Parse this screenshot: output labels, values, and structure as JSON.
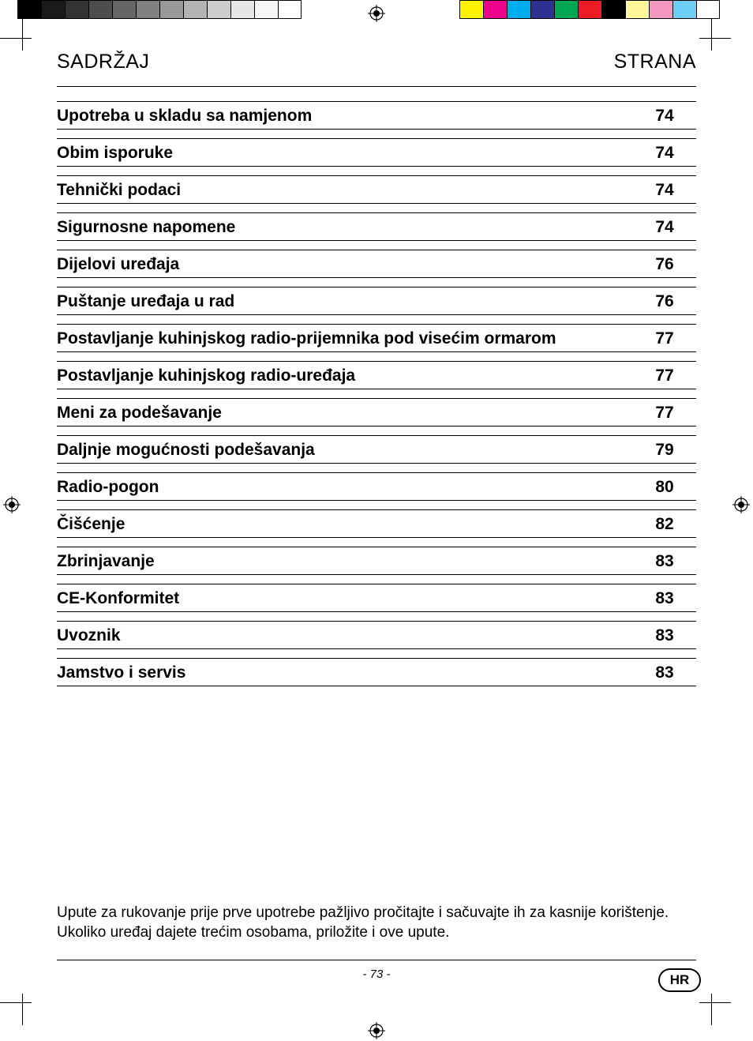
{
  "header": {
    "left": "SADRŽAJ",
    "right": "STRANA"
  },
  "toc": [
    {
      "title": "Upotreba u skladu sa namjenom",
      "page": "74"
    },
    {
      "title": "Obim isporuke",
      "page": "74"
    },
    {
      "title": "Tehnički podaci",
      "page": "74"
    },
    {
      "title": "Sigurnosne napomene",
      "page": "74"
    },
    {
      "title": "Dijelovi uređaja",
      "page": "76"
    },
    {
      "title": "Puštanje uređaja u rad",
      "page": "76"
    },
    {
      "title": "Postavljanje kuhinjskog radio-prijemnika pod visećim ormarom",
      "page": "77"
    },
    {
      "title": "Postavljanje kuhinjskog radio-uređaja",
      "page": "77"
    },
    {
      "title": "Meni za podešavanje",
      "page": "77"
    },
    {
      "title": "Daljnje mogućnosti podešavanja",
      "page": "79"
    },
    {
      "title": "Radio-pogon",
      "page": "80"
    },
    {
      "title": "Čišćenje",
      "page": "82"
    },
    {
      "title": "Zbrinjavanje",
      "page": "83"
    },
    {
      "title": "CE-Konformitet",
      "page": "83"
    },
    {
      "title": "Uvoznik",
      "page": "83"
    },
    {
      "title": "Jamstvo i servis",
      "page": "83"
    }
  ],
  "note": "Upute za rukovanje prije prve upotrebe pažljivo pročitajte i sačuvajte ih za kasnije korištenje. Ukoliko uređaj dajete trećim osobama, priložite i ove upute.",
  "page_number": "- 73 -",
  "lang_badge": "HR",
  "calibration": {
    "gray_swatches": [
      "#000000",
      "#1a1a1a",
      "#333333",
      "#4d4d4d",
      "#666666",
      "#808080",
      "#999999",
      "#b3b3b3",
      "#cccccc",
      "#e6e6e6",
      "#f7f7f7",
      "#ffffff"
    ],
    "color_swatches": [
      "#fff200",
      "#ec008c",
      "#00aeef",
      "#2e3192",
      "#00a651",
      "#ed1c24",
      "#000000",
      "#fff799",
      "#f49ac1",
      "#6dcff6",
      "#ffffff"
    ],
    "swatch_w": 30,
    "swatch_h": 24
  }
}
